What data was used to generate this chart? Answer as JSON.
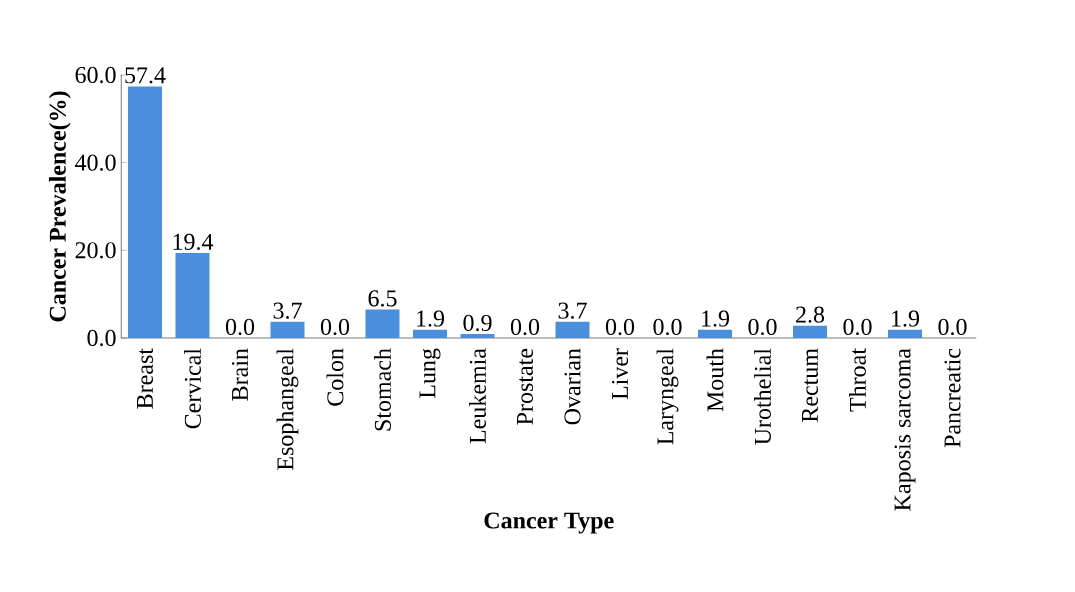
{
  "chart_data": {
    "type": "bar",
    "xlabel": "Cancer Type",
    "ylabel": "Cancer Prevalence(%)",
    "categories": [
      "Breast",
      "Cervical",
      "Brain",
      "Esophangeal",
      "Colon",
      "Stomach",
      "Lung",
      "Leukemia",
      "Prostate",
      "Ovarian",
      "Liver",
      "Laryngeal",
      "Mouth",
      "Urothelial",
      "Rectum",
      "Throat",
      "Kaposis sarcoma",
      "Pancreatic"
    ],
    "values": [
      57.4,
      19.4,
      0,
      3.7,
      0,
      6.5,
      1.9,
      0.9,
      0,
      3.7,
      0,
      0,
      1.9,
      0,
      2.8,
      0,
      1.9,
      0
    ],
    "value_labels": [
      "57.4",
      "19.4",
      "0.0",
      "3.7",
      "0.0",
      "6.5",
      "1.9",
      "0.9",
      "0.0",
      "3.7",
      "0.0",
      "0.0",
      "1.9",
      "0.0",
      "2.8",
      "0.0",
      "1.9",
      "0.0"
    ],
    "color": "#4a8fdc",
    "ylim": [
      0,
      60
    ],
    "yticks": [
      {
        "value": 0,
        "label": "0.0"
      },
      {
        "value": 20,
        "label": "20.0"
      },
      {
        "value": 40,
        "label": "40.0"
      },
      {
        "value": 60,
        "label": "60.0"
      }
    ],
    "grid": false
  }
}
